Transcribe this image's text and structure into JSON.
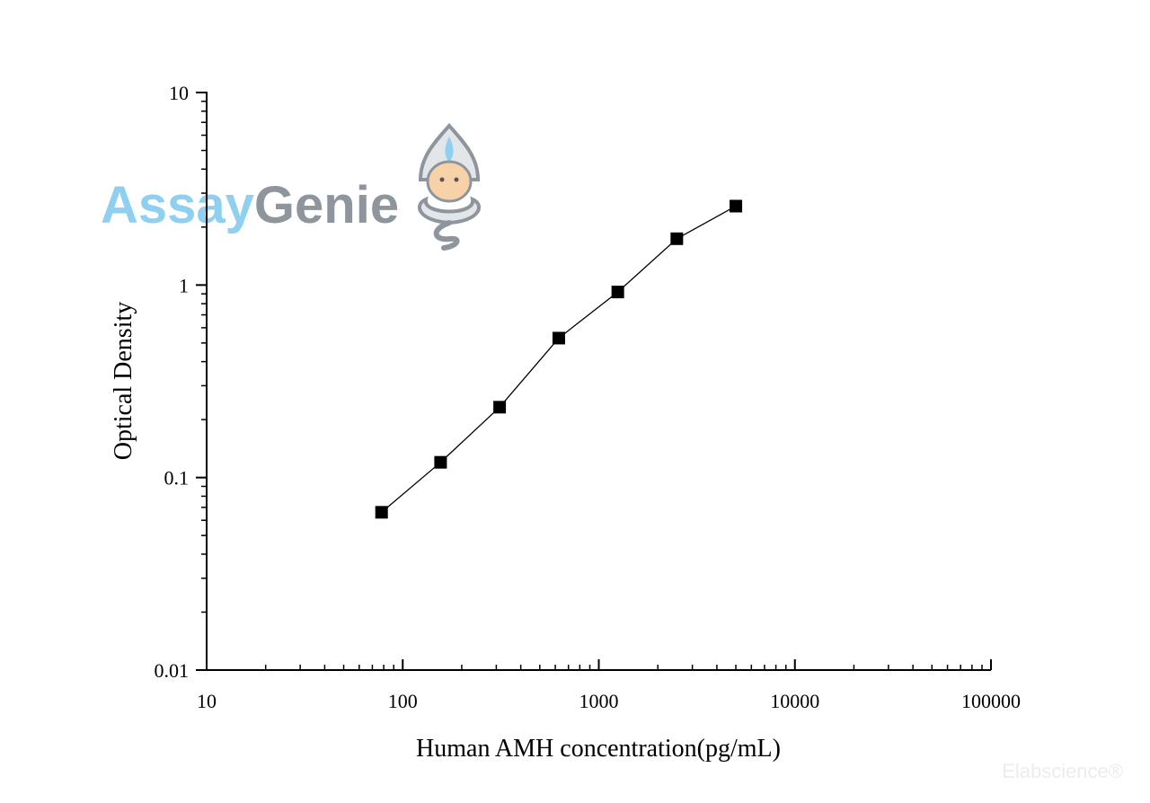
{
  "logo": {
    "part1": "Assay",
    "part2": "Genie",
    "color1": "#8fd0f0",
    "color2": "#8e959c"
  },
  "watermark": "Elabscience®",
  "chart_data": {
    "type": "scatter",
    "xlabel": "Human AMH concentration(pg/mL)",
    "ylabel": "Optical Density",
    "xscale": "log",
    "yscale": "log",
    "xlim": [
      10,
      100000
    ],
    "ylim": [
      0.01,
      10
    ],
    "x_ticks": [
      "10",
      "100",
      "1000",
      "10000",
      "100000"
    ],
    "y_ticks": [
      "0.01",
      "0.1",
      "1",
      "10"
    ],
    "grid": false,
    "series": [
      {
        "marker": "square",
        "connected": true,
        "x": [
          78,
          156,
          312,
          625,
          1250,
          2500,
          5000
        ],
        "y": [
          0.066,
          0.12,
          0.232,
          0.53,
          0.92,
          1.74,
          2.57
        ]
      }
    ]
  }
}
